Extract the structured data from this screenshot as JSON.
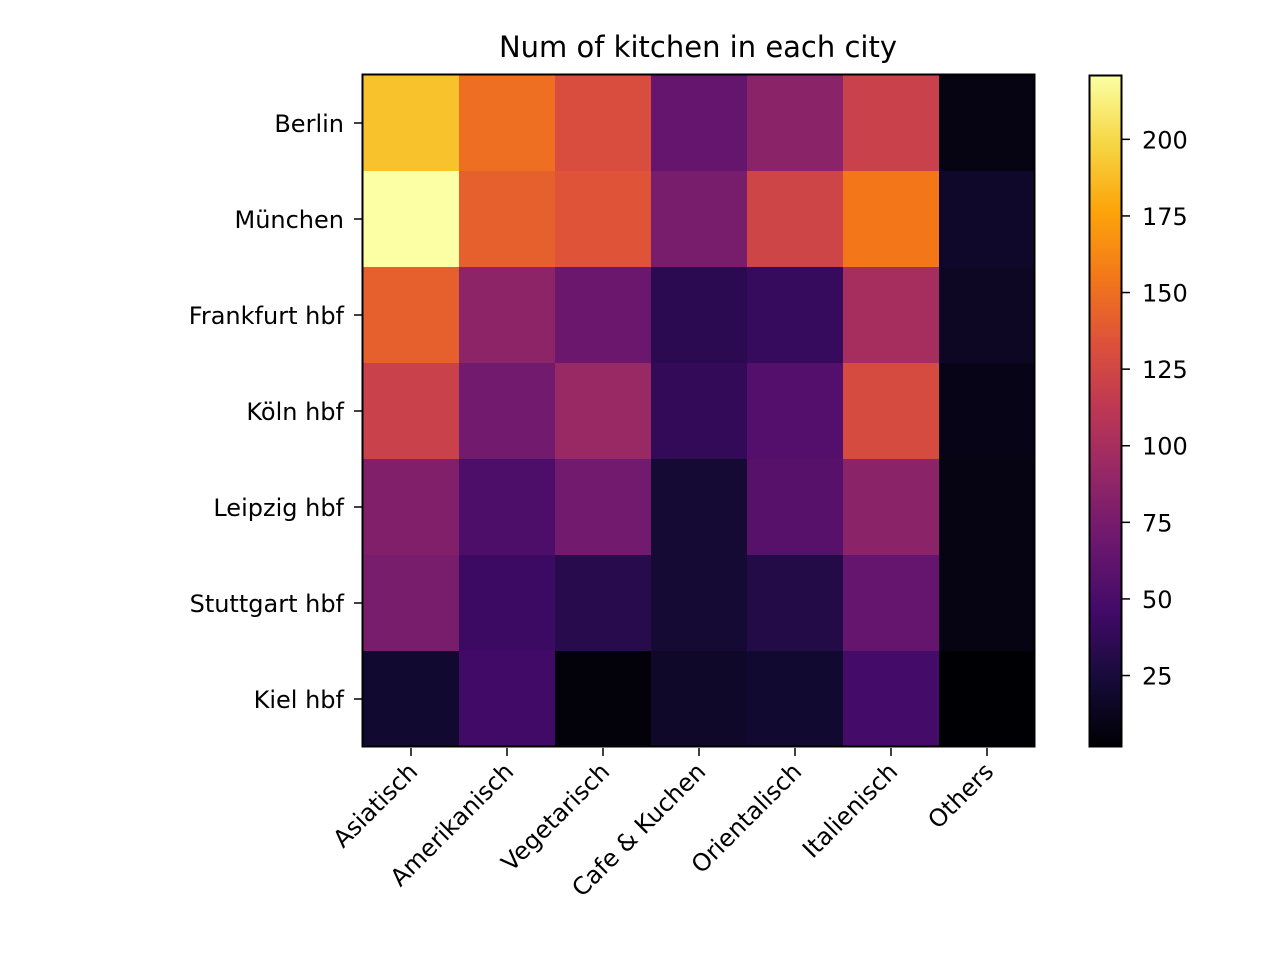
{
  "chart_data": {
    "type": "heatmap",
    "title": "Num of kitchen in each city",
    "xlabel": "",
    "ylabel": "",
    "x_categories": [
      "Asiatisch",
      "Amerikanisch",
      "Vegetarisch",
      "Cafe & Kuchen",
      "Orientalisch",
      "Italienisch",
      "Others"
    ],
    "y_categories": [
      "Berlin",
      "München",
      "Frankfurt hbf",
      "Köln hbf",
      "Leipzig hbf",
      "Stuttgart hbf",
      "Kiel hbf"
    ],
    "values": [
      [
        190,
        150,
        130,
        65,
        85,
        120,
        8
      ],
      [
        221,
        142,
        135,
        75,
        123,
        155,
        18
      ],
      [
        142,
        87,
        68,
        35,
        40,
        100,
        15
      ],
      [
        120,
        72,
        93,
        38,
        55,
        128,
        10
      ],
      [
        80,
        52,
        72,
        22,
        58,
        85,
        8
      ],
      [
        75,
        43,
        33,
        22,
        30,
        65,
        8
      ],
      [
        20,
        45,
        5,
        17,
        20,
        47,
        2
      ]
    ],
    "colormap": "inferno",
    "vmin": 2,
    "vmax": 221,
    "colorbar_ticks": [
      25,
      50,
      75,
      100,
      125,
      150,
      175,
      200
    ],
    "colorbar_tick_labels": [
      "25",
      "50",
      "75",
      "100",
      "125",
      "150",
      "175",
      "200"
    ]
  }
}
